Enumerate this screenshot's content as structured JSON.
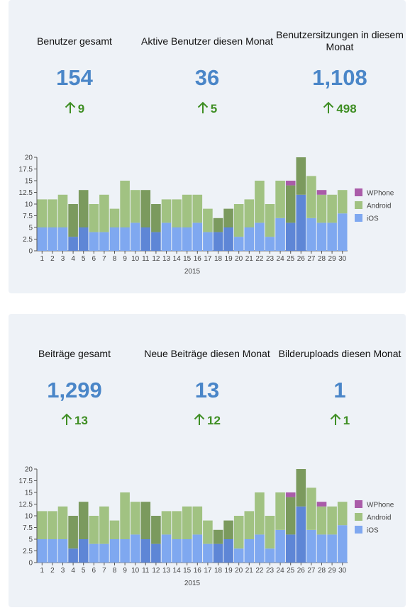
{
  "colors": {
    "value": "#4a86c8",
    "delta": "#3e8e23",
    "ios": "#7fa8f0",
    "ios_dark": "#5e86d6",
    "android": "#a1c282",
    "android_dark": "#7b9a5e",
    "wphone": "#aa5ca9"
  },
  "cards": [
    {
      "stats": [
        {
          "label": "Benutzer gesamt",
          "value": "154",
          "delta": "9",
          "delta_icon": "arrow-up-icon"
        },
        {
          "label": "Aktive Benutzer diesen Monat",
          "value": "36",
          "delta": "5",
          "delta_icon": "arrow-up-icon"
        },
        {
          "label": "Benutzersitzungen in diesem Monat",
          "value": "1,108",
          "delta": "498",
          "delta_icon": "arrow-up-icon"
        }
      ]
    },
    {
      "stats": [
        {
          "label": "Beiträge gesamt",
          "value": "1,299",
          "delta": "13",
          "delta_icon": "arrow-up-icon"
        },
        {
          "label": "Neue Beiträge diesen Monat",
          "value": "13",
          "delta": "12",
          "delta_icon": "arrow-up-icon"
        },
        {
          "label": "Bilderuploads diesen Monat",
          "value": "1",
          "delta": "1",
          "delta_icon": "arrow-up-icon"
        }
      ]
    }
  ],
  "chart_data": [
    {
      "type": "bar",
      "stacked": true,
      "xlabel": "2015",
      "ylim": [
        0,
        20
      ],
      "yticks": [
        "0",
        "2.5",
        "5",
        "7.5",
        "10",
        "12.5",
        "15",
        "17.5",
        "20"
      ],
      "categories": [
        "1",
        "2",
        "3",
        "4",
        "5",
        "6",
        "7",
        "8",
        "9",
        "10",
        "11",
        "12",
        "13",
        "14",
        "15",
        "16",
        "17",
        "18",
        "19",
        "20",
        "21",
        "22",
        "23",
        "24",
        "25",
        "26",
        "27",
        "28",
        "29",
        "30"
      ],
      "highlighted": [
        "4",
        "5",
        "11",
        "12",
        "18",
        "19",
        "25",
        "26"
      ],
      "legend_position": "right",
      "series": [
        {
          "name": "iOS",
          "values": [
            5,
            5,
            5,
            3,
            5,
            4,
            4,
            5,
            5,
            6,
            5,
            4,
            6,
            5,
            5,
            6,
            4,
            4,
            5,
            3,
            5,
            6,
            3,
            7,
            6,
            12,
            7,
            6,
            6,
            8
          ]
        },
        {
          "name": "Android",
          "values": [
            6,
            6,
            7,
            7,
            8,
            6,
            8,
            4,
            10,
            7,
            8,
            6,
            5,
            6,
            7,
            6,
            5,
            3,
            4,
            7,
            6,
            9,
            7,
            8,
            8,
            8,
            9,
            6,
            6,
            5
          ]
        },
        {
          "name": "WPhone",
          "values": [
            0,
            0,
            0,
            0,
            0,
            0,
            0,
            0,
            0,
            0,
            0,
            0,
            0,
            0,
            0,
            0,
            0,
            0,
            0,
            0,
            0,
            0,
            0,
            0,
            1,
            0,
            0,
            1,
            0,
            0
          ]
        }
      ]
    },
    {
      "type": "bar",
      "stacked": true,
      "xlabel": "2015",
      "ylim": [
        0,
        20
      ],
      "yticks": [
        "0",
        "2.5",
        "5",
        "7.5",
        "10",
        "12.5",
        "15",
        "17.5",
        "20"
      ],
      "categories": [
        "1",
        "2",
        "3",
        "4",
        "5",
        "6",
        "7",
        "8",
        "9",
        "10",
        "11",
        "12",
        "13",
        "14",
        "15",
        "16",
        "17",
        "18",
        "19",
        "20",
        "21",
        "22",
        "23",
        "24",
        "25",
        "26",
        "27",
        "28",
        "29",
        "30"
      ],
      "highlighted": [
        "4",
        "5",
        "11",
        "12",
        "18",
        "19",
        "25",
        "26"
      ],
      "legend_position": "right",
      "series": [
        {
          "name": "iOS",
          "values": [
            5,
            5,
            5,
            3,
            5,
            4,
            4,
            5,
            5,
            6,
            5,
            4,
            6,
            5,
            5,
            6,
            4,
            4,
            5,
            3,
            5,
            6,
            3,
            7,
            6,
            12,
            7,
            6,
            6,
            8
          ]
        },
        {
          "name": "Android",
          "values": [
            6,
            6,
            7,
            7,
            8,
            6,
            8,
            4,
            10,
            7,
            8,
            6,
            5,
            6,
            7,
            6,
            5,
            3,
            4,
            7,
            6,
            9,
            7,
            8,
            8,
            8,
            9,
            6,
            6,
            5
          ]
        },
        {
          "name": "WPhone",
          "values": [
            0,
            0,
            0,
            0,
            0,
            0,
            0,
            0,
            0,
            0,
            0,
            0,
            0,
            0,
            0,
            0,
            0,
            0,
            0,
            0,
            0,
            0,
            0,
            0,
            1,
            0,
            0,
            1,
            0,
            0
          ]
        }
      ]
    }
  ]
}
